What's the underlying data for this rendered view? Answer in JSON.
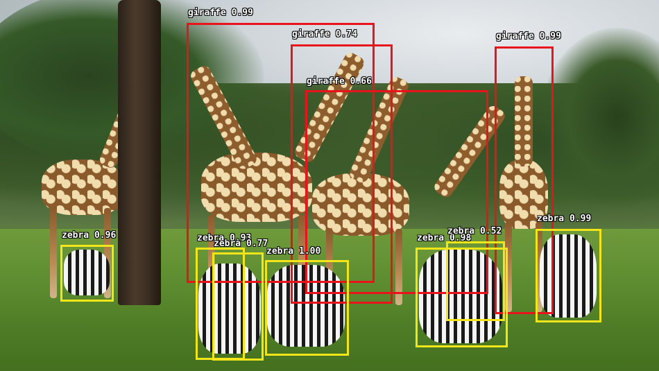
{
  "colors": {
    "giraffe_box": "#e8131b",
    "zebra_box": "#f2e51a",
    "label_text": "#ffffff"
  },
  "detections": [
    {
      "label": "giraffe 0.99"
    },
    {
      "label": "giraffe 0.74"
    },
    {
      "label": "giraffe 0.66"
    },
    {
      "label": "giraffe 0.99"
    },
    {
      "label": "zebra 0.96"
    },
    {
      "label": "zebra 0.93"
    },
    {
      "label": "zebra 0.77"
    },
    {
      "label": "zebra 1.00"
    },
    {
      "label": "zebra 0.98"
    },
    {
      "label": "zebra 0.52"
    },
    {
      "label": "zebra 0.99"
    }
  ]
}
